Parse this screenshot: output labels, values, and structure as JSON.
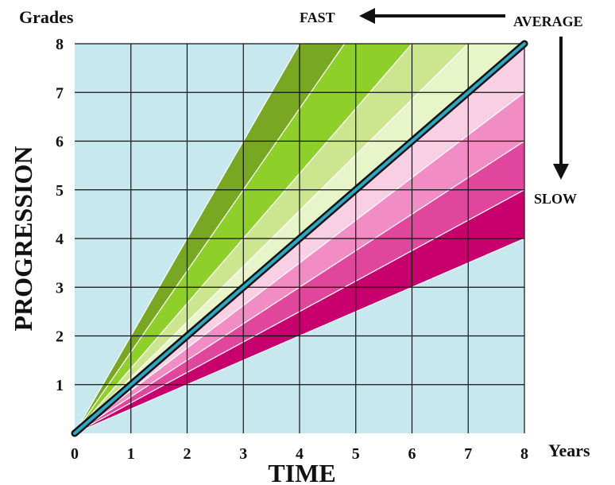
{
  "chart_data": {
    "type": "area",
    "y_axis_unit": "Grades",
    "x_axis_unit": "Years",
    "ylabel": "PROGRESSION",
    "xlabel": "TIME",
    "x_ticks": [
      "0",
      "1",
      "2",
      "3",
      "4",
      "5",
      "6",
      "7",
      "8"
    ],
    "y_ticks": [
      "1",
      "2",
      "3",
      "4",
      "5",
      "6",
      "7",
      "8"
    ],
    "xlim": [
      0,
      8
    ],
    "ylim": [
      0,
      8
    ],
    "grid": true,
    "annotations": {
      "fast": "FAST",
      "average": "AVERAGE",
      "slow": "SLOW"
    },
    "average_line": {
      "x": [
        0,
        8
      ],
      "y": [
        0,
        8
      ],
      "color": "#29a9c4"
    },
    "fan_bands": [
      {
        "slope_low": 1.6667,
        "slope_high": 2.0,
        "color": "#78a722"
      },
      {
        "slope_low": 1.3333,
        "slope_high": 1.6667,
        "color": "#8ecf2a"
      },
      {
        "slope_low": 1.1429,
        "slope_high": 1.3333,
        "color": "#cbe68f"
      },
      {
        "slope_low": 1.0,
        "slope_high": 1.1429,
        "color": "#e7f5c8"
      },
      {
        "slope_low": 0.875,
        "slope_high": 1.0,
        "color": "#f9cfe4"
      },
      {
        "slope_low": 0.75,
        "slope_high": 0.875,
        "color": "#f18cc4"
      },
      {
        "slope_low": 0.625,
        "slope_high": 0.75,
        "color": "#e0479c"
      },
      {
        "slope_low": 0.5,
        "slope_high": 0.625,
        "color": "#c8006e"
      }
    ],
    "colors": {
      "background": "#c8e8f0",
      "grid": "#111111"
    }
  }
}
